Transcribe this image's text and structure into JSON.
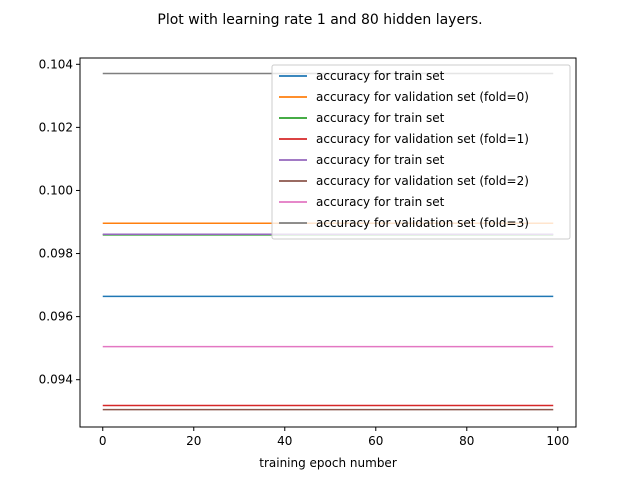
{
  "chart_data": {
    "type": "line",
    "title": "Plot with learning rate 1 and 80 hidden layers.",
    "xlabel": "training epoch number",
    "ylabel": "",
    "xlim": [
      -5,
      104
    ],
    "ylim": [
      0.0925,
      0.1042
    ],
    "xticks": [
      0,
      20,
      40,
      60,
      80,
      100
    ],
    "yticks": [
      0.094,
      0.096,
      0.098,
      0.1,
      0.102,
      0.104
    ],
    "ytick_labels": [
      "0.094",
      "0.096",
      "0.098",
      "0.100",
      "0.102",
      "0.104"
    ],
    "grid": false,
    "legend_position": "upper right",
    "x": [
      0,
      99
    ],
    "series": [
      {
        "name": "accuracy for train set",
        "color": "#1f77b4",
        "values": [
          0.09664,
          0.09664
        ]
      },
      {
        "name": "accuracy for validation set (fold=0)",
        "color": "#ff7f0e",
        "values": [
          0.09896,
          0.09896
        ]
      },
      {
        "name": "accuracy for train set",
        "color": "#2ca02c",
        "values": [
          0.09859,
          0.09859
        ]
      },
      {
        "name": "accuracy for validation set (fold=1)",
        "color": "#d62728",
        "values": [
          0.09318,
          0.09318
        ]
      },
      {
        "name": "accuracy for train set",
        "color": "#9467bd",
        "values": [
          0.09861,
          0.09861
        ]
      },
      {
        "name": "accuracy for validation set (fold=2)",
        "color": "#8c564b",
        "values": [
          0.09305,
          0.09305
        ]
      },
      {
        "name": "accuracy for train set",
        "color": "#e377c2",
        "values": [
          0.09505,
          0.09505
        ]
      },
      {
        "name": "accuracy for validation set (fold=3)",
        "color": "#7f7f7f",
        "values": [
          0.10371,
          0.10371
        ]
      }
    ]
  }
}
